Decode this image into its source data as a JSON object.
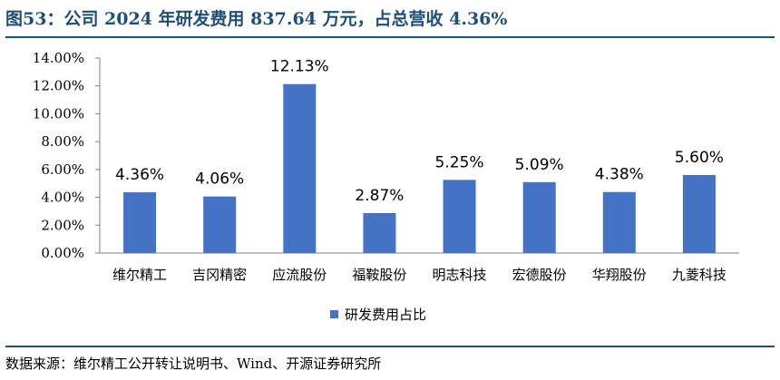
{
  "header": {
    "title": "图53：公司 2024 年研发费用 837.64 万元，占总营收 4.36%"
  },
  "footer": {
    "source": "数据来源：维尔精工公开转让说明书、Wind、开源证券研究所"
  },
  "colors": {
    "bar": "#4472c4",
    "title": "#1f4e79"
  },
  "chart_data": {
    "type": "bar",
    "categories": [
      "维尔精工",
      "吉冈精密",
      "应流股份",
      "福鞍股份",
      "明志科技",
      "宏德股份",
      "华翔股份",
      "九菱科技"
    ],
    "series": [
      {
        "name": "研发费用占比",
        "values": [
          4.36,
          4.06,
          12.13,
          2.87,
          5.25,
          5.09,
          4.38,
          5.6
        ],
        "labels": [
          "4.36%",
          "4.06%",
          "12.13%",
          "2.87%",
          "5.25%",
          "5.09%",
          "4.38%",
          "5.60%"
        ]
      }
    ],
    "yticks": [
      "0.00%",
      "2.00%",
      "4.00%",
      "6.00%",
      "8.00%",
      "10.00%",
      "12.00%",
      "14.00%"
    ],
    "ylim": [
      0,
      14
    ],
    "grid": false,
    "legend_position": "bottom"
  }
}
